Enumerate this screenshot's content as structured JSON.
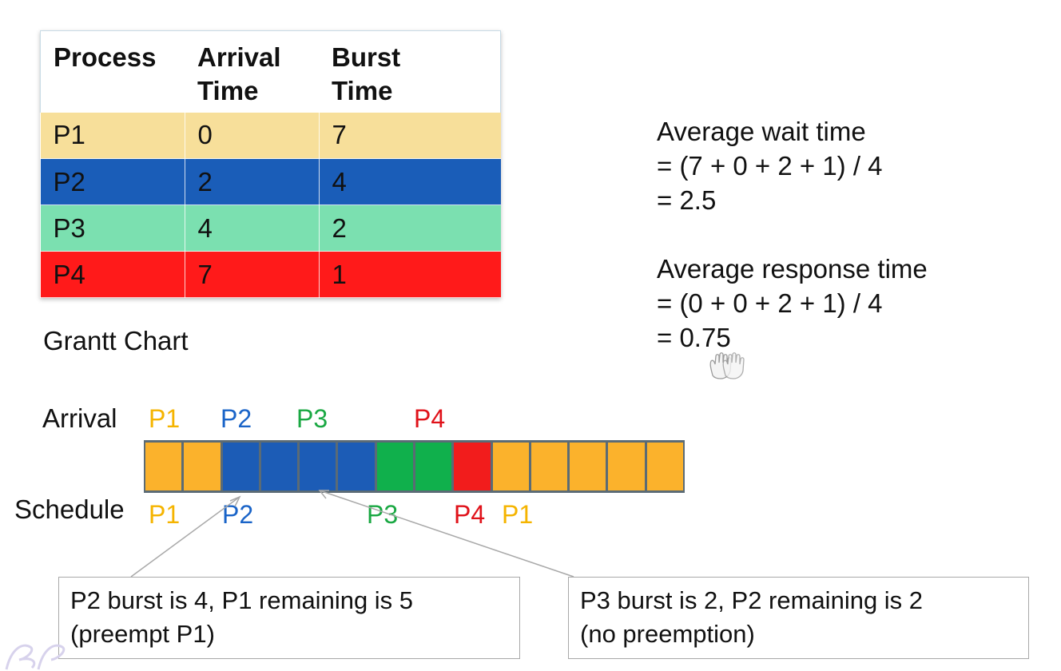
{
  "table": {
    "headers": [
      "Process",
      "Arrival\nTime",
      "Burst\nTime"
    ],
    "rows": [
      {
        "process": "P1",
        "arrival": "0",
        "burst": "7",
        "color": "#f7df9a"
      },
      {
        "process": "P2",
        "arrival": "2",
        "burst": "4",
        "color": "#1a5db8"
      },
      {
        "process": "P3",
        "arrival": "4",
        "burst": "2",
        "color": "#7be0b0"
      },
      {
        "process": "P4",
        "arrival": "7",
        "burst": "1",
        "color": "#ff1a1a"
      }
    ]
  },
  "stats": {
    "wait": [
      "Average wait time",
      "= (7 + 0 + 2 + 1) / 4",
      "= 2.5"
    ],
    "response": [
      "Average response time",
      "= (0 + 0 + 2 + 1) / 4",
      "= 0.75"
    ]
  },
  "gantt": {
    "title": "Grantt Chart",
    "arrival_label": "Arrival",
    "schedule_label": "Schedule",
    "arrivals": [
      {
        "text": "P1",
        "color": "#f5b400"
      },
      {
        "text": "P2",
        "color": "#1a64c8"
      },
      {
        "text": "P3",
        "color": "#1aa843"
      },
      {
        "text": "P4",
        "color": "#e0121a"
      }
    ],
    "schedule": [
      {
        "text": "P1",
        "color": "#f5b400"
      },
      {
        "text": "P2",
        "color": "#1a64c8"
      },
      {
        "text": "P3",
        "color": "#1aa843"
      },
      {
        "text": "P4",
        "color": "#e0121a"
      },
      {
        "text": "P1",
        "color": "#f5b400"
      }
    ],
    "slots": [
      "P1",
      "P1",
      "P2",
      "P2",
      "P2",
      "P2",
      "P3",
      "P3",
      "P4",
      "P1",
      "P1",
      "P1",
      "P1",
      "P1"
    ],
    "slot_colors": {
      "P1": "#fbb22c",
      "P2": "#1c5cb6",
      "P3": "#10b04c",
      "P4": "#f21c1c"
    }
  },
  "notes": {
    "left": [
      "P2 burst is 4, P1 remaining is 5",
      "(preempt P1)"
    ],
    "right": [
      "P3 burst is 2, P2 remaining is 2",
      "(no preemption)"
    ]
  }
}
